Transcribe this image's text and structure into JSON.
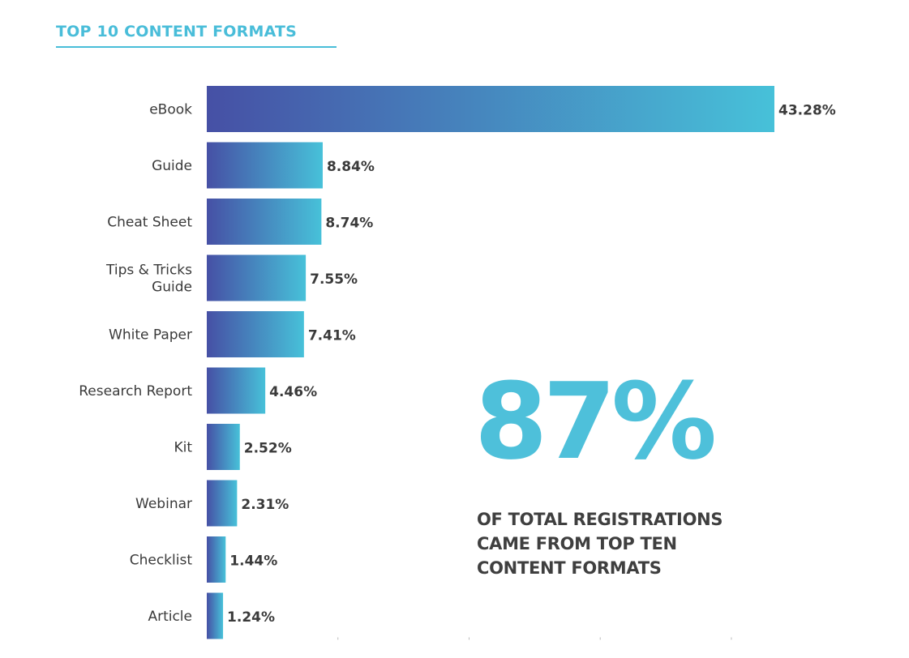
{
  "title": "TOP 10 CONTENT FORMATS",
  "colors": {
    "accent": "#49bdd9",
    "bar_start": "#4650a5",
    "bar_end": "#47c1d9",
    "text": "#3a3a3a"
  },
  "highlight": {
    "value": "87%",
    "caption_lines": [
      "OF TOTAL REGISTRATIONS",
      "CAME FROM TOP TEN",
      "CONTENT FORMATS"
    ]
  },
  "chart_data": {
    "type": "bar",
    "orientation": "horizontal",
    "title": "TOP 10 CONTENT FORMATS",
    "categories": [
      [
        "eBook"
      ],
      [
        "Guide"
      ],
      [
        "Cheat Sheet"
      ],
      [
        "Tips & Tricks",
        "Guide"
      ],
      [
        "White Paper"
      ],
      [
        "Research Report"
      ],
      [
        "Kit"
      ],
      [
        "Webinar"
      ],
      [
        "Checklist"
      ],
      [
        "Article"
      ]
    ],
    "values": [
      43.28,
      8.84,
      8.74,
      7.55,
      7.41,
      4.46,
      2.52,
      2.31,
      1.44,
      1.24
    ],
    "value_labels": [
      "43.28%",
      "8.84%",
      "8.74%",
      "7.55%",
      "7.41%",
      "4.46%",
      "2.52%",
      "2.31%",
      "1.44%",
      "1.24%"
    ],
    "unit": "%",
    "xlim": [
      0,
      50
    ],
    "grid": false,
    "legend": "none"
  }
}
